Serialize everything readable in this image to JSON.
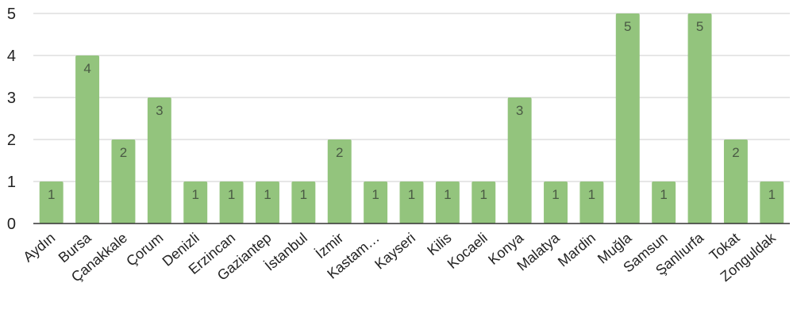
{
  "chart_data": {
    "type": "bar",
    "categories": [
      "Aydın",
      "Bursa",
      "Çanakkale",
      "Çorum",
      "Denizli",
      "Erzincan",
      "Gaziantep",
      "İstanbul",
      "İzmir",
      "Kastam…",
      "Kayseri",
      "Kilis",
      "Kocaeli",
      "Konya",
      "Malatya",
      "Mardin",
      "Muğla",
      "Samsun",
      "Şanlıurfa",
      "Tokat",
      "Zonguldak"
    ],
    "values": [
      1,
      4,
      2,
      3,
      1,
      1,
      1,
      1,
      2,
      1,
      1,
      1,
      1,
      3,
      1,
      1,
      5,
      1,
      5,
      2,
      1
    ],
    "ylim": [
      0,
      5
    ],
    "yticks": [
      "0",
      "1",
      "2",
      "3",
      "4",
      "5"
    ],
    "grid": true,
    "legend": "none",
    "colors": {
      "bar": "#93c47d",
      "grid": "#cccccc",
      "axis": "#333333",
      "data_label": "#4a5a44"
    }
  }
}
